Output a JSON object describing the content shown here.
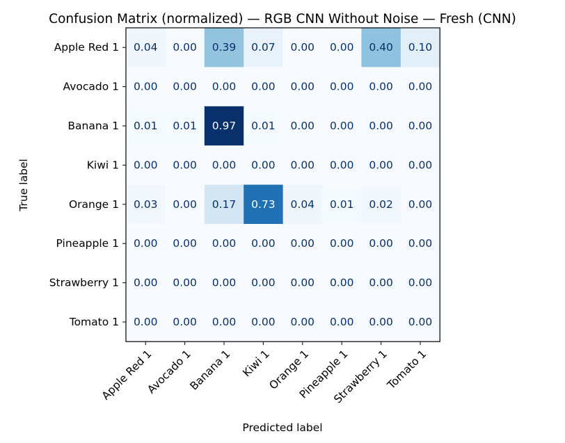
{
  "chart_data": {
    "type": "heatmap",
    "title": "Confusion Matrix (normalized) — RGB CNN Without Noise — Fresh (CNN)",
    "xlabel": "Predicted label",
    "ylabel": "True label",
    "row_labels": [
      "Apple Red 1",
      "Avocado 1",
      "Banana 1",
      "Kiwi 1",
      "Orange 1",
      "Pineapple 1",
      "Strawberry 1",
      "Tomato 1"
    ],
    "col_labels": [
      "Apple Red 1",
      "Avocado 1",
      "Banana 1",
      "Kiwi 1",
      "Orange 1",
      "Pineapple 1",
      "Strawberry 1",
      "Tomato 1"
    ],
    "values": [
      [
        0.04,
        0.0,
        0.39,
        0.07,
        0.0,
        0.0,
        0.4,
        0.1
      ],
      [
        0.0,
        0.0,
        0.0,
        0.0,
        0.0,
        0.0,
        0.0,
        0.0
      ],
      [
        0.01,
        0.01,
        0.97,
        0.01,
        0.0,
        0.0,
        0.0,
        0.0
      ],
      [
        0.0,
        0.0,
        0.0,
        0.0,
        0.0,
        0.0,
        0.0,
        0.0
      ],
      [
        0.03,
        0.0,
        0.17,
        0.73,
        0.04,
        0.01,
        0.02,
        0.0
      ],
      [
        0.0,
        0.0,
        0.0,
        0.0,
        0.0,
        0.0,
        0.0,
        0.0
      ],
      [
        0.0,
        0.0,
        0.0,
        0.0,
        0.0,
        0.0,
        0.0,
        0.0
      ],
      [
        0.0,
        0.0,
        0.0,
        0.0,
        0.0,
        0.0,
        0.0,
        0.0
      ]
    ],
    "value_format": "0.00",
    "colormap": "Blues",
    "color_range": [
      0,
      0.97
    ],
    "grid": false,
    "legend": "none"
  }
}
